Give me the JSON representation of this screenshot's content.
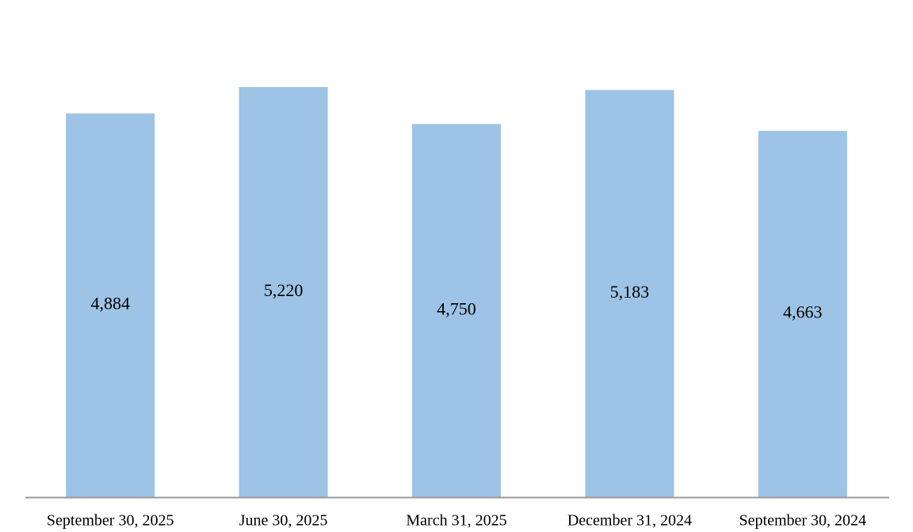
{
  "chart_data": {
    "type": "bar",
    "categories": [
      "September 30, 2025",
      "June 30, 2025",
      "March 31, 2025",
      "December 31, 2024",
      "September 30, 2024"
    ],
    "values": [
      4884,
      5220,
      4750,
      5183,
      4663
    ],
    "value_labels": [
      "4,884",
      "5,220",
      "4,750",
      "5,183",
      "4,663"
    ],
    "color": "#9dc3e6"
  }
}
